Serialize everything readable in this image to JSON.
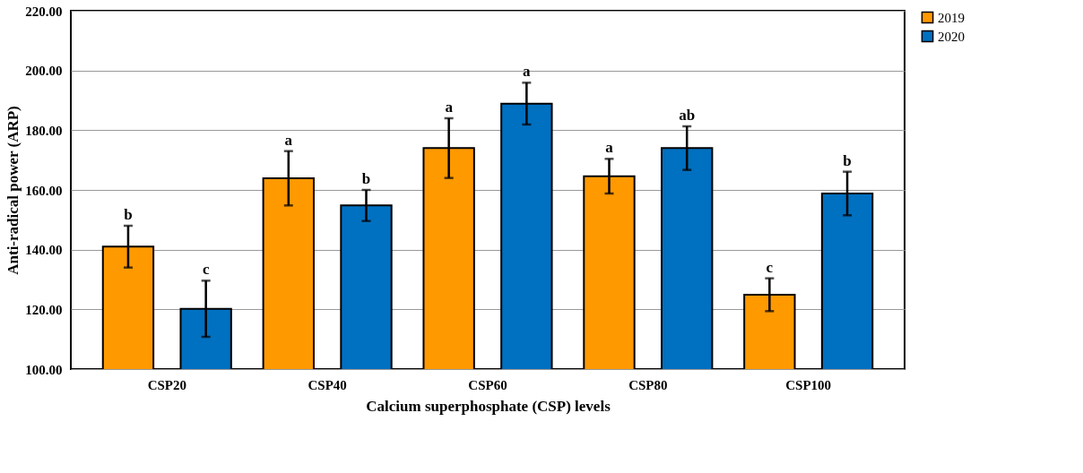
{
  "chart_data": {
    "type": "bar",
    "xlabel": "Calcium superphosphate (CSP) levels",
    "ylabel": "Anti-radical power (ARP)",
    "categories": [
      "CSP20",
      "CSP40",
      "CSP60",
      "CSP80",
      "CSP100"
    ],
    "series": [
      {
        "name": "2019",
        "color": "#ff9900",
        "values": [
          141.0,
          163.9,
          174.0,
          164.6,
          124.9
        ],
        "errors": [
          7.0,
          9.1,
          10.0,
          5.8,
          5.5
        ],
        "value_labels": [
          "b",
          "a",
          "a",
          "a",
          "c"
        ]
      },
      {
        "name": "2020",
        "color": "#0070c0",
        "values": [
          120.2,
          154.8,
          188.9,
          174.0,
          158.8
        ],
        "errors": [
          9.4,
          5.2,
          7.0,
          7.3,
          7.3
        ],
        "value_labels": [
          "c",
          "b",
          "a",
          "ab",
          "b"
        ]
      }
    ],
    "ylim": [
      100,
      220
    ],
    "yticks": [
      {
        "value": 100,
        "label": "100.00"
      },
      {
        "value": 120,
        "label": "120.00"
      },
      {
        "value": 140,
        "label": "140.00"
      },
      {
        "value": 160,
        "label": "160.00"
      },
      {
        "value": 180,
        "label": "180.00"
      },
      {
        "value": 200,
        "label": "200.00"
      },
      {
        "value": 220,
        "label": "220.00"
      }
    ],
    "grid": "y",
    "legend": "top right"
  }
}
